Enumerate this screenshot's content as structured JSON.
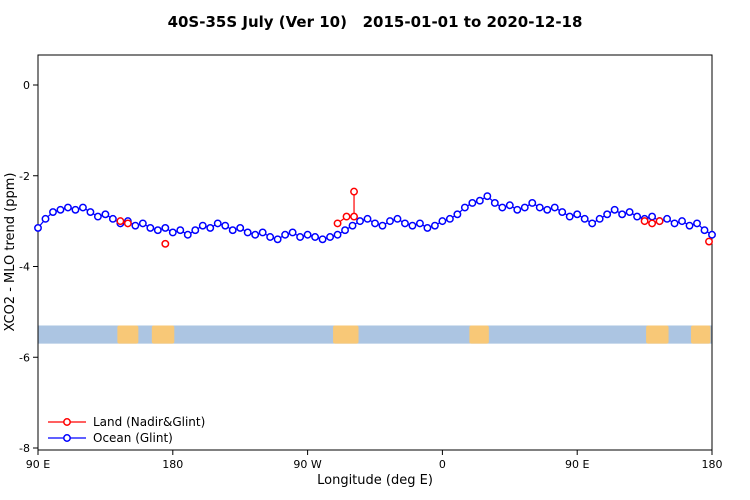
{
  "chart_data": {
    "type": "line",
    "title": "40S-35S July (Ver 10)   2015-01-01 to 2020-12-18",
    "xlabel": "Longitude (deg E)",
    "ylabel": "XCO2 - MLO trend (ppm)",
    "xlim": [
      90,
      540
    ],
    "ylim": [
      -8,
      0
    ],
    "grid": false,
    "x_ticks": [
      {
        "pos": 90,
        "label": "90 E"
      },
      {
        "pos": 180,
        "label": "180"
      },
      {
        "pos": 270,
        "label": "90 W"
      },
      {
        "pos": 360,
        "label": "0"
      },
      {
        "pos": 450,
        "label": "90 E"
      },
      {
        "pos": 540,
        "label": "180"
      }
    ],
    "y_ticks": [
      {
        "pos": 0,
        "label": "0"
      },
      {
        "pos": -2,
        "label": "-2"
      },
      {
        "pos": -4,
        "label": "-4"
      },
      {
        "pos": -6,
        "label": "-6"
      },
      {
        "pos": -8,
        "label": "-8"
      }
    ],
    "series": [
      {
        "name": "Ocean (Glint)",
        "color": "#0000FF",
        "marker": "open-circle",
        "x_start": 90,
        "x_step": 5,
        "y": [
          -3.15,
          -2.95,
          -2.8,
          -2.75,
          -2.7,
          -2.75,
          -2.7,
          -2.8,
          -2.9,
          -2.85,
          -2.95,
          -3.05,
          -3.0,
          -3.1,
          -3.05,
          -3.15,
          -3.2,
          -3.15,
          -3.25,
          -3.2,
          -3.3,
          -3.2,
          -3.1,
          -3.15,
          -3.05,
          -3.1,
          -3.2,
          -3.15,
          -3.25,
          -3.3,
          -3.25,
          -3.35,
          -3.4,
          -3.3,
          -3.25,
          -3.35,
          -3.3,
          -3.35,
          -3.4,
          -3.35,
          -3.3,
          -3.2,
          -3.1,
          -3.0,
          -2.95,
          -3.05,
          -3.1,
          -3.0,
          -2.95,
          -3.05,
          -3.1,
          -3.05,
          -3.15,
          -3.1,
          -3.0,
          -2.95,
          -2.85,
          -2.7,
          -2.6,
          -2.55,
          -2.45,
          -2.6,
          -2.7,
          -2.65,
          -2.75,
          -2.7,
          -2.6,
          -2.7,
          -2.75,
          -2.7,
          -2.8,
          -2.9,
          -2.85,
          -2.95,
          -3.05,
          -2.95,
          -2.85,
          -2.75,
          -2.85,
          -2.8,
          -2.9,
          -2.95,
          -2.9,
          -3.0,
          -2.95,
          -3.05,
          -3.0,
          -3.1,
          -3.05,
          -3.2,
          -3.3
        ]
      },
      {
        "name": "Land (Nadir&Glint)",
        "color": "#FF0000",
        "marker": "open-circle",
        "segments": [
          [
            [
              145,
              -3.0
            ],
            [
              150,
              -3.05
            ]
          ],
          [
            [
              175,
              -3.5
            ]
          ],
          [
            [
              290,
              -3.05
            ],
            [
              296,
              -2.9
            ],
            [
              301,
              -2.9
            ],
            [
              301,
              -2.35
            ]
          ],
          [
            [
              495,
              -3.0
            ],
            [
              500,
              -3.05
            ],
            [
              505,
              -3.0
            ]
          ],
          [
            [
              538,
              -3.45
            ]
          ]
        ]
      }
    ],
    "map_band": {
      "y_range": [
        -5.3,
        -5.7
      ],
      "ocean_color": "#ACC5E2",
      "land_color": "#F8C877",
      "land_patches_lon": [
        [
          143,
          157
        ],
        [
          166,
          181
        ],
        [
          287,
          304
        ],
        [
          378,
          391
        ],
        [
          496,
          511
        ],
        [
          526,
          539
        ]
      ]
    },
    "legend": {
      "position": "bottom-left",
      "items": [
        {
          "label": "Land (Nadir&Glint)",
          "color": "#FF0000"
        },
        {
          "label": "Ocean (Glint)",
          "color": "#0000FF"
        }
      ]
    }
  }
}
